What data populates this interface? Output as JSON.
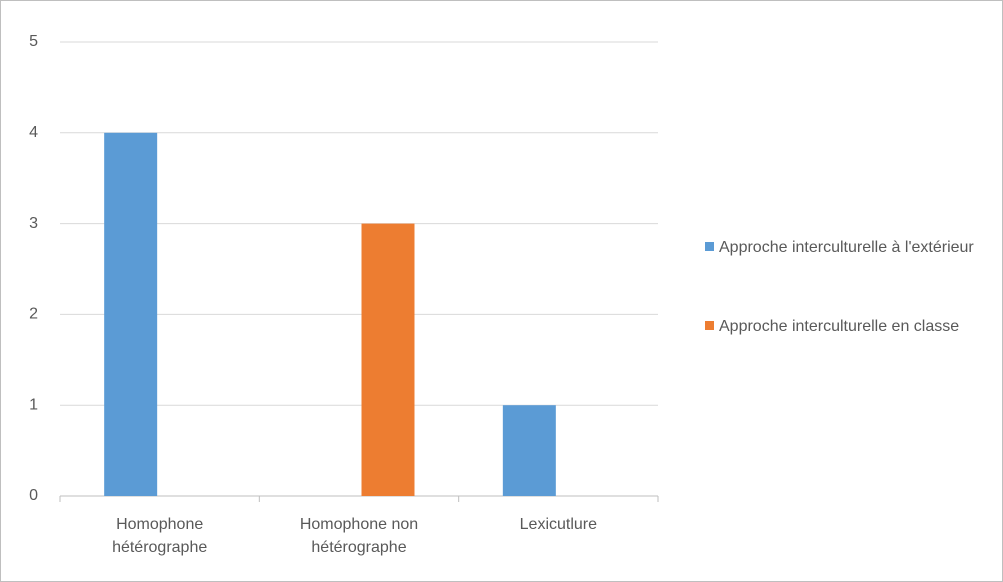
{
  "chart_data": {
    "type": "bar",
    "categories": [
      "Homophone hétérographe",
      "Homophone non hétérographe",
      "Lexicutlure"
    ],
    "series": [
      {
        "name": "Approche interculturelle à l'extérieur",
        "color": "#5b9bd5",
        "values": [
          4,
          0,
          1
        ]
      },
      {
        "name": "Approche interculturelle en classe",
        "color": "#ed7d31",
        "values": [
          0,
          3,
          0
        ]
      }
    ],
    "ylim": [
      0,
      5
    ],
    "yticks": [
      0,
      1,
      2,
      3,
      4,
      5
    ],
    "grid": true,
    "legend": "right"
  }
}
